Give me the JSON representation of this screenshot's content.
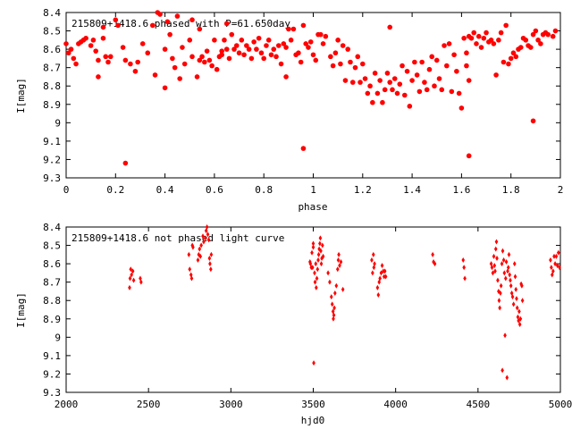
{
  "chart_data": [
    {
      "type": "scatter",
      "title": "215809+1418.6 phased with P=61.650day",
      "xlabel": "phase",
      "ylabel": "I[mag]",
      "xlim": [
        0,
        2
      ],
      "ylim": [
        8.4,
        9.3
      ],
      "y_inverted": true,
      "grid": false,
      "marker": "filled circle",
      "color": "#ff0000",
      "xticks": [
        "0",
        "0.2",
        "0.4",
        "0.6",
        "0.8",
        "1",
        "1.2",
        "1.4",
        "1.6",
        "1.8",
        "2"
      ],
      "yticks": [
        "8.4",
        "8.5",
        "8.6",
        "8.7",
        "8.8",
        "8.9",
        "9",
        "9.1",
        "9.2",
        "9.3"
      ],
      "points": [
        [
          0.0,
          8.57
        ],
        [
          0.01,
          8.62
        ],
        [
          0.02,
          8.6
        ],
        [
          0.03,
          8.65
        ],
        [
          0.04,
          8.68
        ],
        [
          0.05,
          8.57
        ],
        [
          0.06,
          8.56
        ],
        [
          0.07,
          8.55
        ],
        [
          0.08,
          8.54
        ],
        [
          0.1,
          8.58
        ],
        [
          0.11,
          8.55
        ],
        [
          0.12,
          8.61
        ],
        [
          0.13,
          8.66
        ],
        [
          0.13,
          8.75
        ],
        [
          0.15,
          8.54
        ],
        [
          0.15,
          8.48
        ],
        [
          0.16,
          8.64
        ],
        [
          0.17,
          8.67
        ],
        [
          0.18,
          8.64
        ],
        [
          0.2,
          8.44
        ],
        [
          0.21,
          8.47
        ],
        [
          0.23,
          8.59
        ],
        [
          0.24,
          8.66
        ],
        [
          0.24,
          9.22
        ],
        [
          0.26,
          8.68
        ],
        [
          0.28,
          8.72
        ],
        [
          0.29,
          8.67
        ],
        [
          0.31,
          8.57
        ],
        [
          0.33,
          8.62
        ],
        [
          0.35,
          8.47
        ],
        [
          0.36,
          8.74
        ],
        [
          0.37,
          8.4
        ],
        [
          0.38,
          8.41
        ],
        [
          0.4,
          8.6
        ],
        [
          0.4,
          8.81
        ],
        [
          0.41,
          8.45
        ],
        [
          0.42,
          8.52
        ],
        [
          0.43,
          8.65
        ],
        [
          0.44,
          8.7
        ],
        [
          0.45,
          8.42
        ],
        [
          0.46,
          8.76
        ],
        [
          0.47,
          8.59
        ],
        [
          0.48,
          8.68
        ],
        [
          0.5,
          8.55
        ],
        [
          0.51,
          8.64
        ],
        [
          0.51,
          8.44
        ],
        [
          0.53,
          8.75
        ],
        [
          0.54,
          8.49
        ],
        [
          0.54,
          8.66
        ],
        [
          0.55,
          8.64
        ],
        [
          0.56,
          8.67
        ],
        [
          0.57,
          8.61
        ],
        [
          0.58,
          8.66
        ],
        [
          0.59,
          8.69
        ],
        [
          0.6,
          8.55
        ],
        [
          0.61,
          8.71
        ],
        [
          0.62,
          8.64
        ],
        [
          0.63,
          8.61
        ],
        [
          0.63,
          8.63
        ],
        [
          0.64,
          8.55
        ],
        [
          0.65,
          8.46
        ],
        [
          0.65,
          8.6
        ],
        [
          0.66,
          8.65
        ],
        [
          0.67,
          8.52
        ],
        [
          0.68,
          8.6
        ],
        [
          0.69,
          8.58
        ],
        [
          0.7,
          8.62
        ],
        [
          0.71,
          8.55
        ],
        [
          0.72,
          8.63
        ],
        [
          0.73,
          8.58
        ],
        [
          0.74,
          8.6
        ],
        [
          0.75,
          8.65
        ],
        [
          0.76,
          8.56
        ],
        [
          0.77,
          8.6
        ],
        [
          0.78,
          8.54
        ],
        [
          0.79,
          8.62
        ],
        [
          0.8,
          8.65
        ],
        [
          0.81,
          8.58
        ],
        [
          0.82,
          8.55
        ],
        [
          0.83,
          8.63
        ],
        [
          0.84,
          8.6
        ],
        [
          0.85,
          8.64
        ],
        [
          0.86,
          8.58
        ],
        [
          0.87,
          8.68
        ],
        [
          0.88,
          8.57
        ],
        [
          0.89,
          8.59
        ],
        [
          0.89,
          8.75
        ],
        [
          0.9,
          8.49
        ],
        [
          0.91,
          8.55
        ],
        [
          0.92,
          8.49
        ],
        [
          0.93,
          8.63
        ],
        [
          0.94,
          8.62
        ],
        [
          0.95,
          8.67
        ],
        [
          0.96,
          8.47
        ],
        [
          0.96,
          9.14
        ],
        [
          0.97,
          8.57
        ],
        [
          0.98,
          8.59
        ],
        [
          0.99,
          8.56
        ],
        [
          1.0,
          8.63
        ],
        [
          1.01,
          8.66
        ],
        [
          1.02,
          8.52
        ],
        [
          1.03,
          8.52
        ],
        [
          1.04,
          8.57
        ],
        [
          1.05,
          8.53
        ],
        [
          1.07,
          8.64
        ],
        [
          1.08,
          8.69
        ],
        [
          1.09,
          8.62
        ],
        [
          1.1,
          8.55
        ],
        [
          1.11,
          8.68
        ],
        [
          1.12,
          8.58
        ],
        [
          1.13,
          8.77
        ],
        [
          1.14,
          8.6
        ],
        [
          1.15,
          8.67
        ],
        [
          1.16,
          8.78
        ],
        [
          1.17,
          8.7
        ],
        [
          1.18,
          8.64
        ],
        [
          1.19,
          8.78
        ],
        [
          1.2,
          8.68
        ],
        [
          1.21,
          8.76
        ],
        [
          1.22,
          8.84
        ],
        [
          1.23,
          8.8
        ],
        [
          1.24,
          8.89
        ],
        [
          1.25,
          8.73
        ],
        [
          1.26,
          8.84
        ],
        [
          1.27,
          8.77
        ],
        [
          1.28,
          8.89
        ],
        [
          1.29,
          8.82
        ],
        [
          1.3,
          8.73
        ],
        [
          1.31,
          8.78
        ],
        [
          1.31,
          8.48
        ],
        [
          1.32,
          8.82
        ],
        [
          1.33,
          8.76
        ],
        [
          1.34,
          8.84
        ],
        [
          1.35,
          8.79
        ],
        [
          1.36,
          8.69
        ],
        [
          1.37,
          8.85
        ],
        [
          1.38,
          8.72
        ],
        [
          1.39,
          8.91
        ],
        [
          1.4,
          8.77
        ],
        [
          1.41,
          8.67
        ],
        [
          1.42,
          8.74
        ],
        [
          1.43,
          8.83
        ],
        [
          1.44,
          8.67
        ],
        [
          1.45,
          8.78
        ],
        [
          1.46,
          8.82
        ],
        [
          1.47,
          8.71
        ],
        [
          1.48,
          8.64
        ],
        [
          1.49,
          8.8
        ],
        [
          1.5,
          8.66
        ],
        [
          1.51,
          8.76
        ],
        [
          1.52,
          8.82
        ],
        [
          1.53,
          8.58
        ],
        [
          1.54,
          8.69
        ],
        [
          1.55,
          8.57
        ],
        [
          1.56,
          8.83
        ],
        [
          1.57,
          8.63
        ],
        [
          1.58,
          8.72
        ],
        [
          1.59,
          8.84
        ],
        [
          1.6,
          8.92
        ],
        [
          1.61,
          8.54
        ],
        [
          1.62,
          8.69
        ],
        [
          1.62,
          8.62
        ],
        [
          1.63,
          8.53
        ],
        [
          1.63,
          8.77
        ],
        [
          1.63,
          9.18
        ],
        [
          1.64,
          8.54
        ],
        [
          1.65,
          8.51
        ],
        [
          1.66,
          8.57
        ],
        [
          1.67,
          8.53
        ],
        [
          1.68,
          8.59
        ],
        [
          1.69,
          8.54
        ],
        [
          1.7,
          8.51
        ],
        [
          1.71,
          8.56
        ],
        [
          1.72,
          8.55
        ],
        [
          1.73,
          8.57
        ],
        [
          1.74,
          8.74
        ],
        [
          1.75,
          8.55
        ],
        [
          1.76,
          8.51
        ],
        [
          1.77,
          8.67
        ],
        [
          1.78,
          8.47
        ],
        [
          1.79,
          8.68
        ],
        [
          1.8,
          8.65
        ],
        [
          1.81,
          8.62
        ],
        [
          1.82,
          8.64
        ],
        [
          1.83,
          8.6
        ],
        [
          1.84,
          8.59
        ],
        [
          1.85,
          8.54
        ],
        [
          1.86,
          8.55
        ],
        [
          1.87,
          8.58
        ],
        [
          1.88,
          8.59
        ],
        [
          1.89,
          8.52
        ],
        [
          1.89,
          8.99
        ],
        [
          1.9,
          8.5
        ],
        [
          1.91,
          8.55
        ],
        [
          1.92,
          8.57
        ],
        [
          1.93,
          8.52
        ],
        [
          1.94,
          8.51
        ],
        [
          1.95,
          8.52
        ],
        [
          1.97,
          8.53
        ],
        [
          1.98,
          8.5
        ]
      ]
    },
    {
      "type": "scatter",
      "title": "215809+1418.6 not phased light curve",
      "xlabel": "hjd0",
      "ylabel": "I[mag]",
      "xlim": [
        2000,
        5000
      ],
      "ylim": [
        8.4,
        9.3
      ],
      "y_inverted": true,
      "grid": false,
      "marker": "small filled diamond",
      "color": "#ff0000",
      "xticks": [
        "2000",
        "2500",
        "3000",
        "3500",
        "4000",
        "4500",
        "5000"
      ],
      "yticks": [
        "8.4",
        "8.5",
        "8.6",
        "8.7",
        "8.8",
        "8.9",
        "9",
        "9.1",
        "9.2",
        "9.3"
      ],
      "points": [
        [
          2385,
          8.73
        ],
        [
          2388,
          8.68
        ],
        [
          2392,
          8.63
        ],
        [
          2397,
          8.66
        ],
        [
          2405,
          8.64
        ],
        [
          2410,
          8.69
        ],
        [
          2450,
          8.68
        ],
        [
          2455,
          8.7
        ],
        [
          2745,
          8.55
        ],
        [
          2750,
          8.63
        ],
        [
          2758,
          8.66
        ],
        [
          2762,
          8.68
        ],
        [
          2766,
          8.5
        ],
        [
          2770,
          8.51
        ],
        [
          2800,
          8.58
        ],
        [
          2805,
          8.55
        ],
        [
          2810,
          8.52
        ],
        [
          2815,
          8.56
        ],
        [
          2820,
          8.5
        ],
        [
          2830,
          8.45
        ],
        [
          2835,
          8.48
        ],
        [
          2845,
          8.46
        ],
        [
          2850,
          8.42
        ],
        [
          2855,
          8.4
        ],
        [
          2860,
          8.44
        ],
        [
          2866,
          8.47
        ],
        [
          2870,
          8.57
        ],
        [
          2873,
          8.6
        ],
        [
          2878,
          8.63
        ],
        [
          2881,
          8.55
        ],
        [
          3480,
          8.59
        ],
        [
          3483,
          8.6
        ],
        [
          3488,
          8.62
        ],
        [
          3492,
          8.54
        ],
        [
          3496,
          8.62
        ],
        [
          3500,
          8.49
        ],
        [
          3500,
          8.51
        ],
        [
          3503,
          9.14
        ],
        [
          3508,
          8.65
        ],
        [
          3511,
          8.7
        ],
        [
          3515,
          8.6
        ],
        [
          3518,
          8.73
        ],
        [
          3522,
          8.68
        ],
        [
          3526,
          8.63
        ],
        [
          3530,
          8.58
        ],
        [
          3533,
          8.55
        ],
        [
          3536,
          8.52
        ],
        [
          3540,
          8.49
        ],
        [
          3543,
          8.46
        ],
        [
          3546,
          8.53
        ],
        [
          3549,
          8.6
        ],
        [
          3552,
          8.57
        ],
        [
          3556,
          8.5
        ],
        [
          3560,
          8.56
        ],
        [
          3590,
          8.65
        ],
        [
          3600,
          8.7
        ],
        [
          3610,
          8.78
        ],
        [
          3615,
          8.82
        ],
        [
          3620,
          8.86
        ],
        [
          3622,
          8.9
        ],
        [
          3625,
          8.88
        ],
        [
          3628,
          8.84
        ],
        [
          3632,
          8.76
        ],
        [
          3640,
          8.72
        ],
        [
          3648,
          8.63
        ],
        [
          3652,
          8.58
        ],
        [
          3655,
          8.55
        ],
        [
          3660,
          8.61
        ],
        [
          3668,
          8.59
        ],
        [
          3680,
          8.74
        ],
        [
          3855,
          8.58
        ],
        [
          3860,
          8.65
        ],
        [
          3865,
          8.55
        ],
        [
          3868,
          8.62
        ],
        [
          3872,
          8.6
        ],
        [
          3890,
          8.73
        ],
        [
          3895,
          8.77
        ],
        [
          3900,
          8.7
        ],
        [
          3905,
          8.68
        ],
        [
          3912,
          8.65
        ],
        [
          3918,
          8.61
        ],
        [
          3925,
          8.64
        ],
        [
          3930,
          8.67
        ],
        [
          3935,
          8.64
        ],
        [
          3940,
          8.67
        ],
        [
          4225,
          8.55
        ],
        [
          4230,
          8.59
        ],
        [
          4238,
          8.6
        ],
        [
          4410,
          8.58
        ],
        [
          4415,
          8.62
        ],
        [
          4420,
          8.68
        ],
        [
          4580,
          8.6
        ],
        [
          4585,
          8.62
        ],
        [
          4590,
          8.65
        ],
        [
          4596,
          8.56
        ],
        [
          4600,
          8.61
        ],
        [
          4604,
          8.64
        ],
        [
          4608,
          8.52
        ],
        [
          4612,
          8.48
        ],
        [
          4615,
          8.57
        ],
        [
          4620,
          8.69
        ],
        [
          4625,
          8.75
        ],
        [
          4628,
          8.8
        ],
        [
          4632,
          8.84
        ],
        [
          4636,
          8.76
        ],
        [
          4640,
          8.72
        ],
        [
          4645,
          8.6
        ],
        [
          4648,
          9.18
        ],
        [
          4650,
          8.53
        ],
        [
          4656,
          8.58
        ],
        [
          4660,
          8.65
        ],
        [
          4664,
          8.99
        ],
        [
          4668,
          8.68
        ],
        [
          4672,
          8.59
        ],
        [
          4676,
          9.22
        ],
        [
          4680,
          8.64
        ],
        [
          4684,
          8.62
        ],
        [
          4688,
          8.55
        ],
        [
          4692,
          8.66
        ],
        [
          4696,
          8.69
        ],
        [
          4700,
          8.72
        ],
        [
          4705,
          8.76
        ],
        [
          4710,
          8.78
        ],
        [
          4716,
          8.82
        ],
        [
          4722,
          8.6
        ],
        [
          4726,
          8.67
        ],
        [
          4730,
          8.74
        ],
        [
          4734,
          8.79
        ],
        [
          4738,
          8.84
        ],
        [
          4742,
          8.89
        ],
        [
          4746,
          8.91
        ],
        [
          4750,
          8.86
        ],
        [
          4754,
          8.93
        ],
        [
          4758,
          8.9
        ],
        [
          4762,
          8.71
        ],
        [
          4766,
          8.72
        ],
        [
          4770,
          8.8
        ],
        [
          4940,
          8.58
        ],
        [
          4945,
          8.62
        ],
        [
          4950,
          8.66
        ],
        [
          4956,
          8.64
        ],
        [
          4962,
          8.56
        ],
        [
          4968,
          8.6
        ],
        [
          4975,
          8.56
        ],
        [
          4982,
          8.61
        ],
        [
          4988,
          8.54
        ],
        [
          4995,
          8.62
        ]
      ]
    }
  ]
}
